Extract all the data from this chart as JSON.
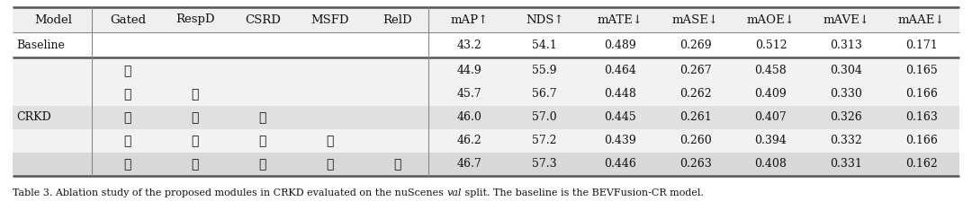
{
  "headers": [
    "Model",
    "Gated",
    "RespD",
    "CSRD",
    "MSFD",
    "RelD",
    "mAP↑",
    "NDS↑",
    "mATE↓",
    "mASE↓",
    "mAOE↓",
    "mAVE↓",
    "mAAE↓"
  ],
  "baseline_row": [
    "Baseline",
    "",
    "",
    "",
    "",
    "",
    "43.2",
    "54.1",
    "0.489",
    "0.269",
    "0.512",
    "0.313",
    "0.171"
  ],
  "crkd_rows": [
    [
      true,
      false,
      false,
      false,
      false,
      "44.9",
      "55.9",
      "0.464",
      "0.267",
      "0.458",
      "0.304",
      "0.165"
    ],
    [
      true,
      true,
      false,
      false,
      false,
      "45.7",
      "56.7",
      "0.448",
      "0.262",
      "0.409",
      "0.330",
      "0.166"
    ],
    [
      true,
      true,
      true,
      false,
      false,
      "46.0",
      "57.0",
      "0.445",
      "0.261",
      "0.407",
      "0.326",
      "0.163"
    ],
    [
      true,
      true,
      true,
      true,
      false,
      "46.2",
      "57.2",
      "0.439",
      "0.260",
      "0.394",
      "0.332",
      "0.166"
    ],
    [
      true,
      true,
      true,
      true,
      true,
      "46.7",
      "57.3",
      "0.446",
      "0.263",
      "0.408",
      "0.331",
      "0.162"
    ]
  ],
  "caption_part1": "Table 3. Ablation study of the proposed modules in CRKD evaluated on the nuScenes ",
  "caption_italic": "val",
  "caption_part3": " split. The baseline is the BEVFusion-CR model.",
  "bg_header": "#efefef",
  "bg_baseline": "#ffffff",
  "bg_row0": "#f2f2f2",
  "bg_row1": "#f2f2f2",
  "bg_row2": "#e0e0e0",
  "bg_row3": "#f2f2f2",
  "bg_row4": "#d8d8d8",
  "line_color": "#888888",
  "line_color_thick": "#555555",
  "text_color": "#111111",
  "fs_header": 9.5,
  "fs_data": 9.0,
  "fs_caption": 8.0
}
